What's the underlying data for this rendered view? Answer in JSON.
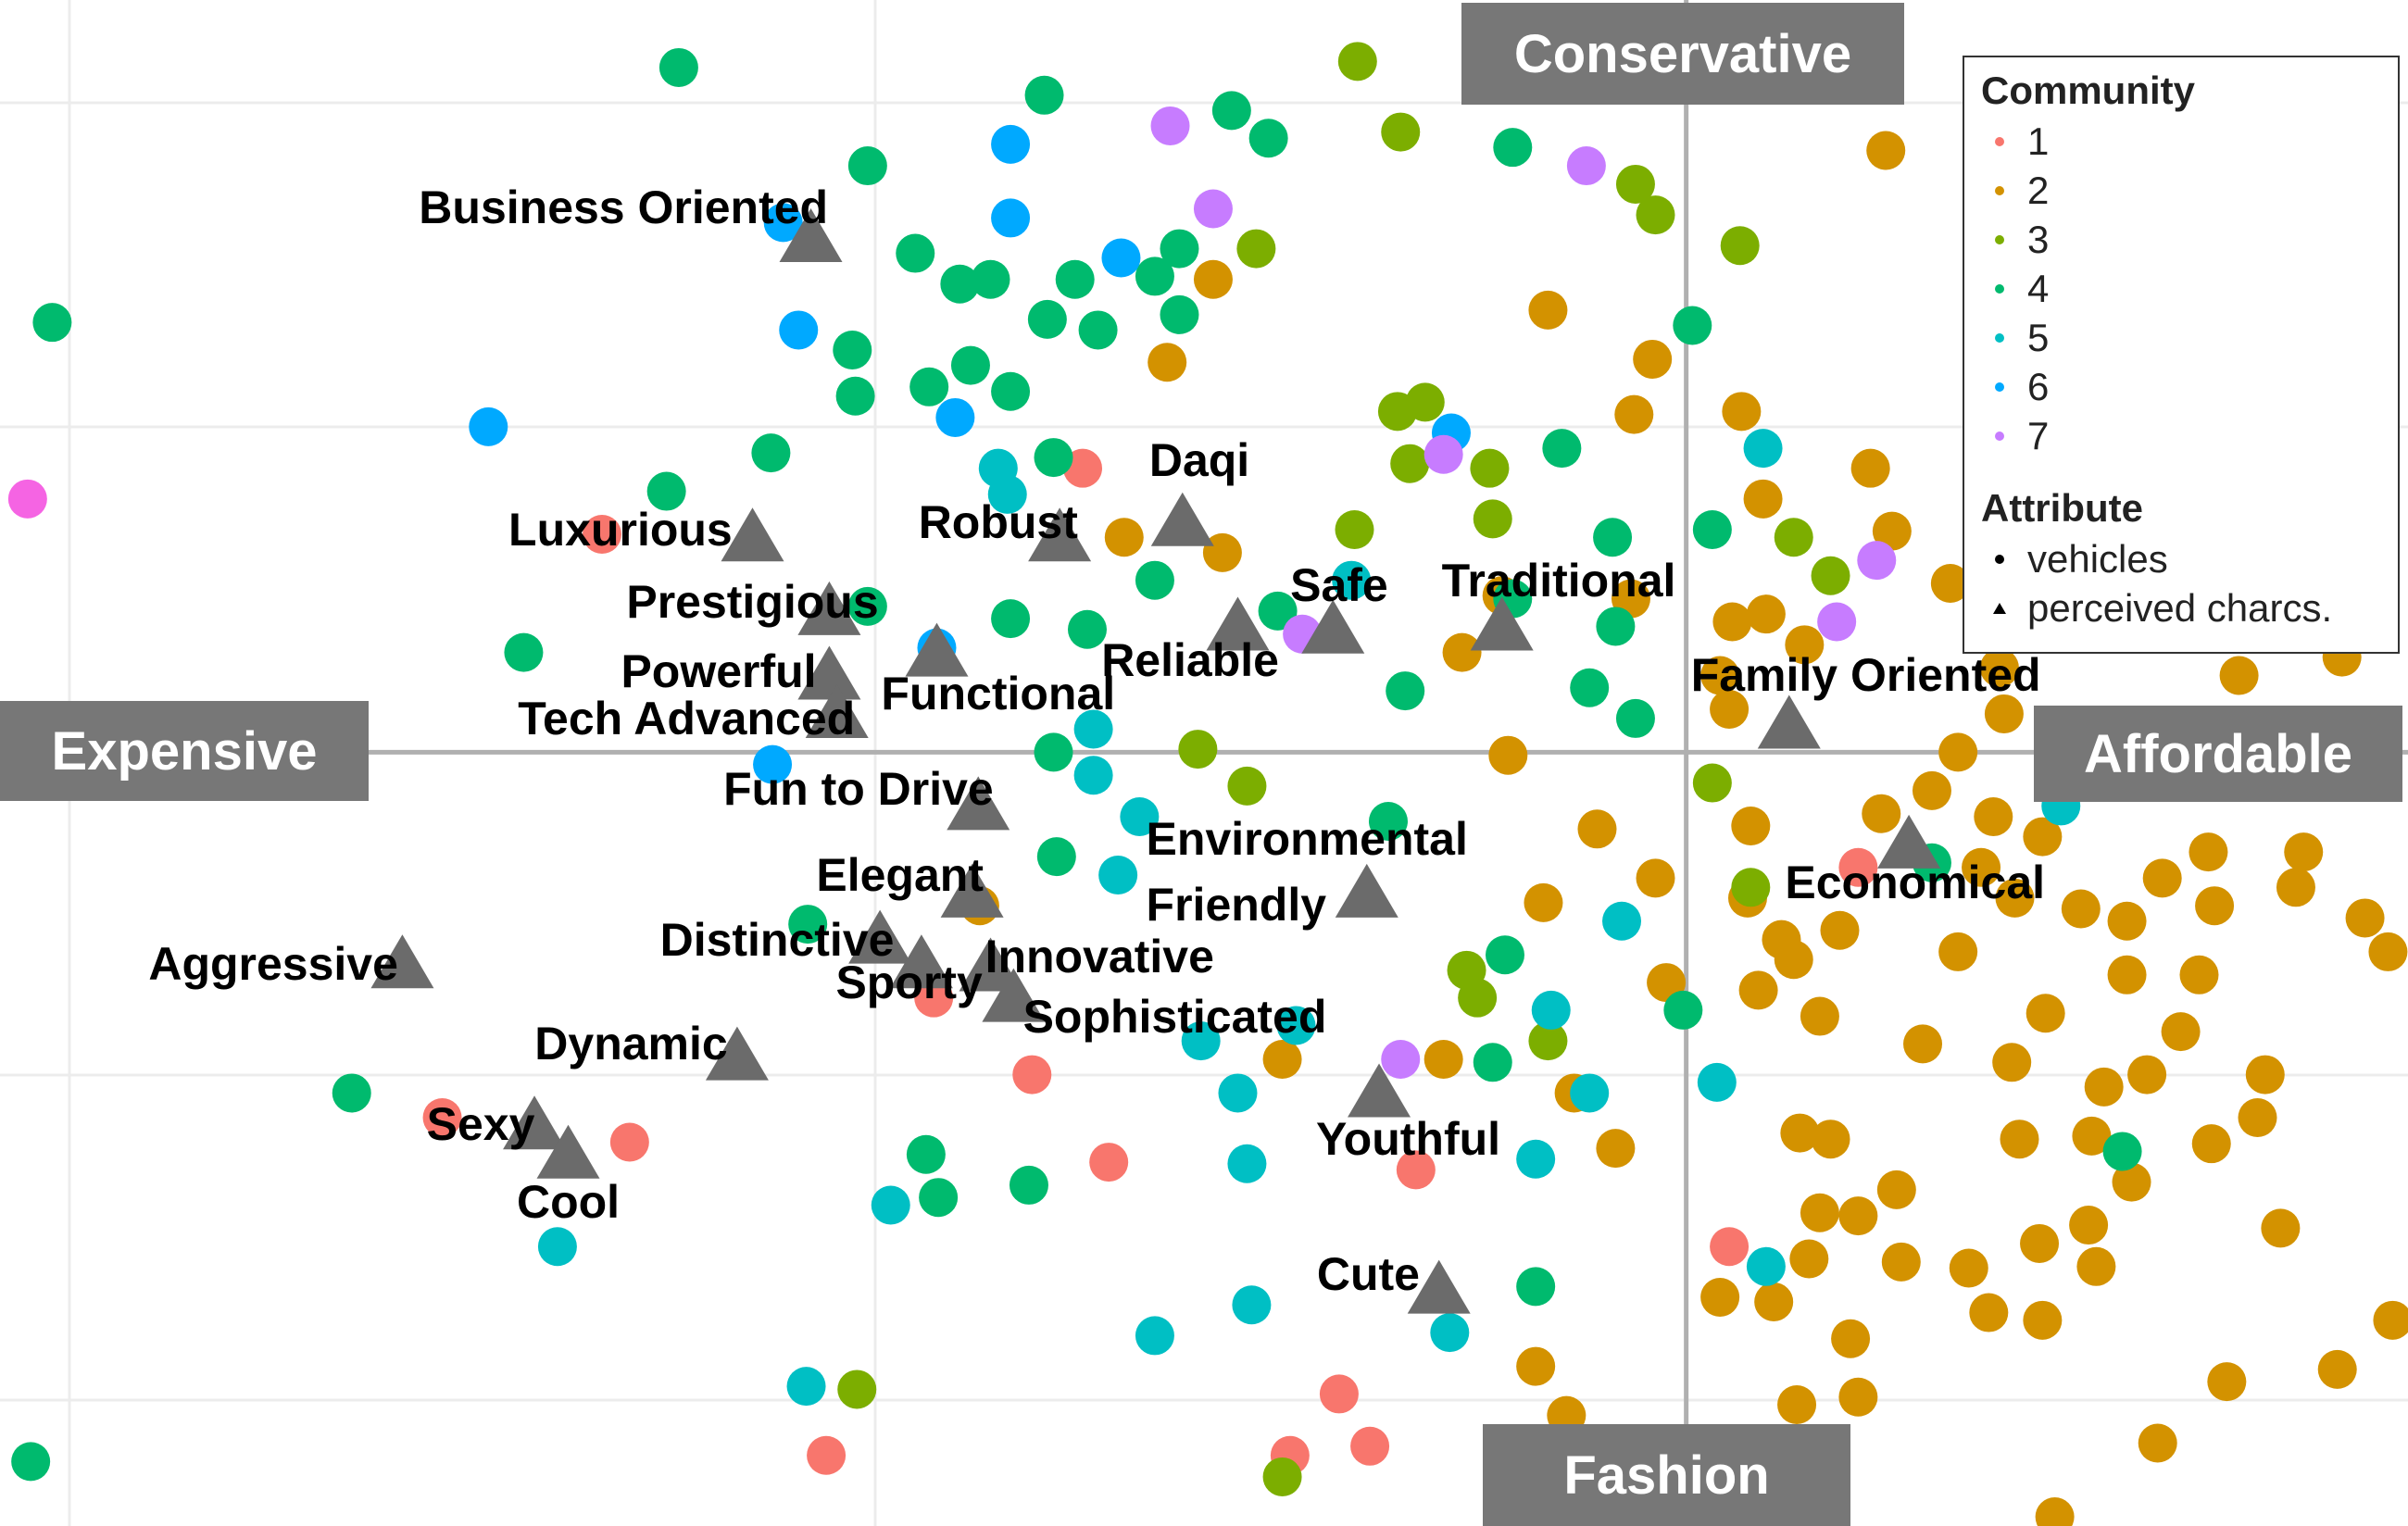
{
  "chart_data": {
    "type": "scatter",
    "xlim": [
      -1098,
      470
    ],
    "ylim": [
      -504,
      490
    ],
    "axis_labels": {
      "top": "Conservative",
      "bottom": "Fashion",
      "left": "Expensive",
      "right": "Affordable"
    },
    "legend": {
      "title": "Community",
      "attribute_title": "Attribute",
      "attribute_items": [
        "vehicles",
        "perceived charcs."
      ]
    },
    "series": [
      {
        "name": "1",
        "color": "#F8766D",
        "x": [
          -706,
          -393,
          -490,
          -426,
          -376,
          -810,
          -688,
          -176,
          -226,
          -206,
          -258,
          -560,
          28,
          112
        ],
        "y": [
          142,
          185,
          -160,
          -210,
          -267,
          -238,
          -254,
          -272,
          -418,
          -452,
          -458,
          -458,
          -322,
          -75
        ]
      },
      {
        "name": "2",
        "color": "#D39200",
        "x": [
          130,
          -338,
          -308,
          -90,
          -22,
          -34,
          36,
          120,
          50,
          134,
          172,
          30,
          52,
          22,
          77,
          204,
          267,
          360,
          427,
          28,
          207,
          177,
          160,
          127,
          200,
          232,
          192,
          214,
          257,
          287,
          310,
          340,
          344,
          402,
          397,
          442,
          457,
          177,
          100,
          62,
          70,
          40,
          42,
          -20,
          -58,
          -93,
          -116,
          -146,
          -120,
          -302,
          -366,
          -13,
          47,
          87,
          154,
          234,
          287,
          334,
          322,
          377,
          372,
          300,
          272,
          212,
          217,
          264,
          290,
          342,
          74,
          94,
          137,
          112,
          87,
          184,
          230,
          262,
          267,
          387,
          460,
          140,
          80,
          22,
          57,
          197,
          232,
          107,
          112,
          72,
          -78,
          -98,
          352,
          424,
          307,
          240,
          -46,
          -73,
          -158,
          -263,
          -460,
          -36
        ],
        "y": [
          392,
          254,
          308,
          288,
          256,
          220,
          222,
          185,
          165,
          144,
          110,
          85,
          90,
          50,
          70,
          55,
          80,
          50,
          62,
          28,
          25,
          0,
          -25,
          -40,
          -42,
          -55,
          -75,
          -95,
          -102,
          -110,
          -82,
          -65,
          -100,
          -65,
          -88,
          -108,
          -130,
          -130,
          -116,
          -122,
          -135,
          -95,
          -48,
          -82,
          -50,
          -98,
          -2,
          65,
          102,
          130,
          140,
          -150,
          -155,
          -172,
          -190,
          -170,
          -145,
          -145,
          -182,
          -210,
          -238,
          -210,
          -218,
          -202,
          -252,
          -250,
          -280,
          -255,
          -248,
          -252,
          -285,
          -302,
          -300,
          -336,
          -320,
          -308,
          -335,
          -310,
          -370,
          -332,
          -330,
          -355,
          -358,
          -365,
          -370,
          -382,
          -420,
          -425,
          -432,
          -400,
          -410,
          -402,
          -450,
          -498,
          -258,
          -222,
          -200,
          -200,
          -100,
          100
        ]
      },
      {
        "name": "3",
        "color": "#7CAE00",
        "x": [
          -214,
          -186,
          -33,
          -20,
          35,
          -280,
          -188,
          -170,
          -180,
          -128,
          -216,
          -126,
          70,
          94,
          42,
          17,
          -286,
          -318,
          -143,
          -136,
          -90,
          -540,
          -263
        ],
        "y": [
          450,
          404,
          370,
          350,
          330,
          328,
          222,
          228,
          188,
          185,
          145,
          152,
          140,
          115,
          -88,
          -20,
          -22,
          2,
          -142,
          -160,
          -188,
          -415,
          -472
        ]
      },
      {
        "name": "4",
        "color": "#00BA6E",
        "x": [
          -656,
          -418,
          -296,
          -272,
          -113,
          -533,
          -502,
          -473,
          -453,
          -398,
          -416,
          -383,
          -330,
          -346,
          -330,
          -543,
          -541,
          -466,
          -440,
          -493,
          -596,
          -664,
          -412,
          -1064,
          -757,
          -440,
          -390,
          -346,
          -266,
          -183,
          -113,
          -81,
          -48,
          17,
          4,
          -63,
          -33,
          -46,
          -412,
          -194,
          -118,
          -126,
          -2,
          -98,
          -410,
          -572,
          -495,
          -487,
          -428,
          -869,
          -1078,
          284,
          160,
          -533
        ],
        "y": [
          446,
          428,
          418,
          400,
          394,
          382,
          325,
          305,
          308,
          308,
          282,
          275,
          328,
          310,
          285,
          262,
          232,
          252,
          235,
          238,
          195,
          170,
          192,
          280,
          65,
          87,
          80,
          112,
          92,
          40,
          100,
          198,
          140,
          145,
          278,
          42,
          22,
          82,
          0,
          -45,
          -132,
          -202,
          -168,
          -348,
          -68,
          -112,
          -262,
          -290,
          -282,
          -222,
          -462,
          -260,
          -72,
          95
        ]
      },
      {
        "name": "5",
        "color": "#00BFC4",
        "x": [
          50,
          -218,
          -386,
          -386,
          -356,
          -370,
          -42,
          -88,
          -63,
          20,
          -316,
          -292,
          -286,
          -98,
          -254,
          -283,
          -346,
          -154,
          -518,
          -573,
          -735,
          52,
          244,
          -448,
          -442
        ],
        "y": [
          198,
          112,
          15,
          -15,
          -42,
          -80,
          -110,
          -168,
          -222,
          -215,
          -188,
          -222,
          -268,
          -265,
          -178,
          -360,
          -380,
          -378,
          -295,
          -413,
          -322,
          -335,
          -35,
          185,
          168
        ]
      },
      {
        "name": "6",
        "color": "#00A9FF",
        "x": [
          -440,
          -440,
          -588,
          -578,
          -780,
          -368,
          -476,
          -153,
          -488,
          -595
        ],
        "y": [
          396,
          348,
          345,
          275,
          212,
          322,
          218,
          208,
          68,
          -8
        ]
      },
      {
        "name": "7",
        "color": "#C77CFF",
        "x": [
          -336,
          -65,
          -308,
          -158,
          124,
          98,
          -250,
          -186
        ],
        "y": [
          408,
          382,
          354,
          194,
          125,
          85,
          77,
          -200
        ]
      },
      {
        "color": "#F564E3",
        "x": [
          -1080
        ],
        "y": [
          165
        ]
      }
    ],
    "characteristics": {
      "color": "#6b6b6b",
      "labels": [
        "Business Oriented",
        "Luxurious",
        "Robust",
        "Daqi",
        "Prestigious",
        "Safe",
        "Traditional",
        "Reliable",
        "Powerful",
        "Functional",
        "Tech Advanced",
        "Family Oriented",
        "Fun to Drive",
        "Elegant",
        "Environmental Friendly",
        "Economical",
        "Distinctive",
        "Aggressive",
        "Sporty",
        "Innovative",
        "Sophisticated",
        "Dynamic",
        "Sexy",
        "Cool",
        "Youthful",
        "Cute"
      ],
      "x": [
        -570,
        -608,
        -408,
        -328,
        -558,
        -230,
        -120,
        -292,
        -558,
        -488,
        -553,
        67,
        -461,
        -465,
        -208,
        145,
        -525,
        -836,
        -498,
        -453,
        -438,
        -618,
        -750,
        -728,
        -200,
        -161
      ],
      "y": [
        335,
        140,
        140,
        150,
        92,
        80,
        82,
        82,
        50,
        65,
        25,
        18,
        -35,
        -92,
        -92,
        -60,
        -122,
        -138,
        -138,
        -140,
        -160,
        -198,
        -243,
        -262,
        -222,
        -350
      ]
    }
  }
}
